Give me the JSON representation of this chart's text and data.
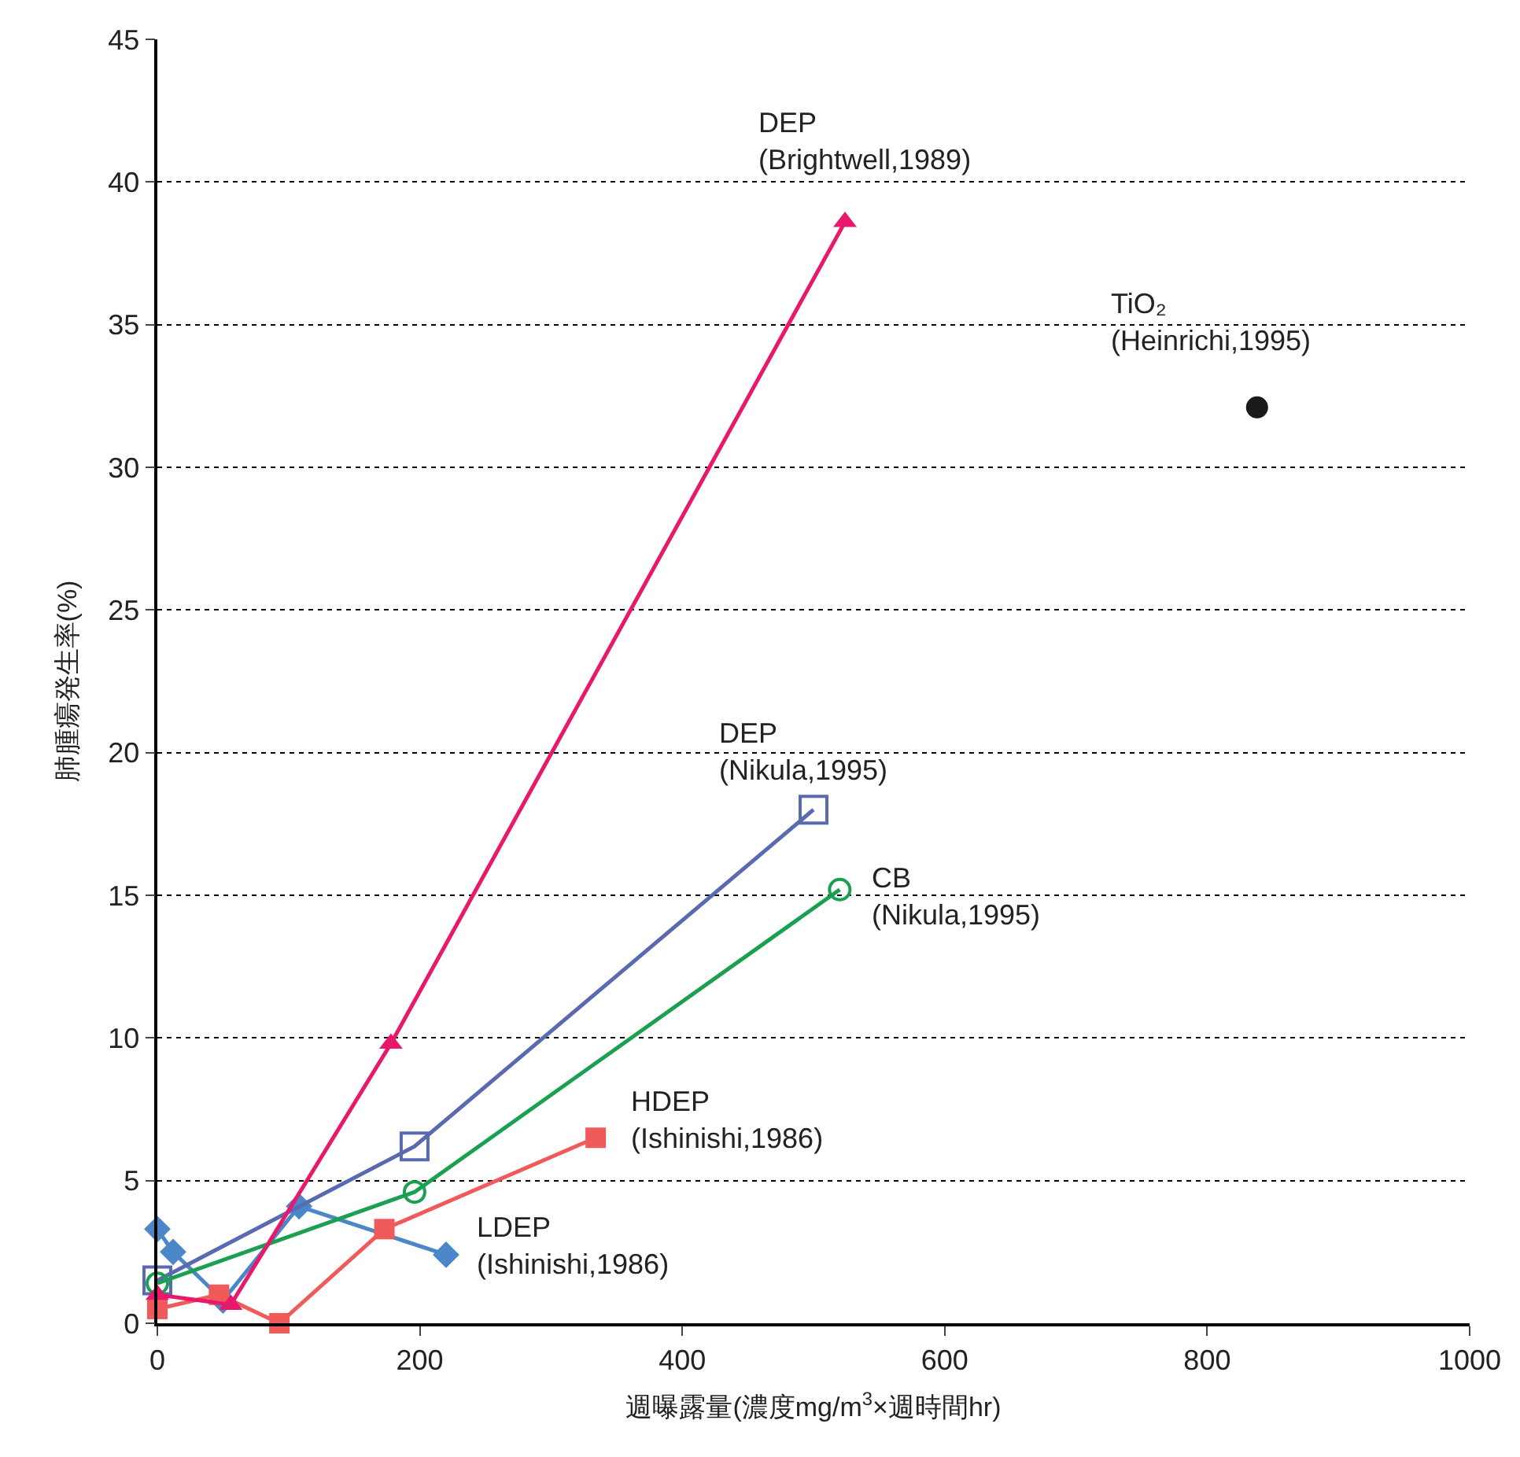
{
  "chart_data": {
    "type": "line",
    "xlabel": "週曝露量(濃度mg/m$^{3}$×週時間hr)",
    "ylabel": "肺腫瘍発生率(%)",
    "xlim": [
      0,
      1000
    ],
    "xticks": [
      0,
      200,
      400,
      600,
      800,
      1000
    ],
    "ylim": [
      0,
      45
    ],
    "yticks": [
      0,
      5,
      10,
      15,
      20,
      25,
      30,
      35,
      40,
      45
    ],
    "grid": "y",
    "series": [
      {
        "name": "LDEP\n(Ishinishi,1986)",
        "color": "#4a86c8",
        "marker": "diamond",
        "x": [
          0,
          12,
          50,
          108,
          220
        ],
        "values": [
          3.3,
          2.5,
          0.8,
          4.1,
          2.4
        ]
      },
      {
        "name": "HDEP\n(Ishinishi,1986)",
        "color": "#f05a5a",
        "marker": "square",
        "x": [
          0,
          47,
          93,
          173,
          334
        ],
        "values": [
          0.5,
          1.0,
          0,
          3.3,
          6.5
        ]
      },
      {
        "name": "DEP\n(Nikula,1995)",
        "color": "#5a6ab0",
        "marker": "square-open",
        "x": [
          0,
          196,
          500
        ],
        "values": [
          1.5,
          6.2,
          18.0
        ]
      },
      {
        "name": "CB\n(Nikula,1995)",
        "color": "#1aa050",
        "marker": "circle-open",
        "x": [
          0,
          196,
          520
        ],
        "values": [
          1.4,
          4.6,
          15.2
        ]
      },
      {
        "name": "DEP\n(Brightwell,1989)",
        "color": "#e8196a",
        "marker": "triangle",
        "x": [
          0,
          56,
          178,
          524
        ],
        "values": [
          1.0,
          0.65,
          9.8,
          38.6
        ]
      },
      {
        "name": "TiO₂\n(Heinrichi,1995)",
        "type": "scatter",
        "color": "#1a1a1a",
        "marker": "circle",
        "x": [
          838
        ],
        "values": [
          32.1
        ]
      }
    ]
  }
}
